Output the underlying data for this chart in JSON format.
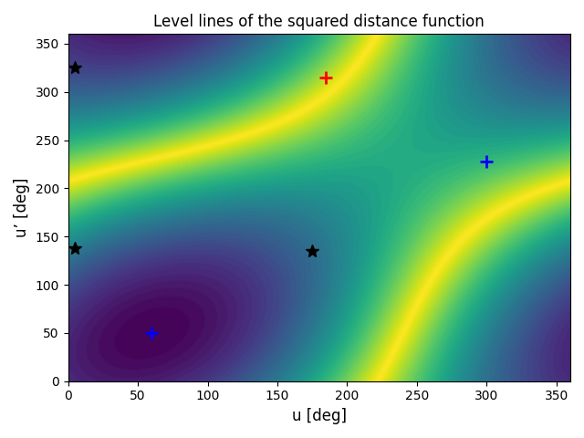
{
  "title": "Level lines of the squared distance function",
  "xlabel": "u [deg]",
  "ylabel": "u’ [deg]",
  "xlim": [
    0,
    360
  ],
  "ylim": [
    0,
    360
  ],
  "xticks": [
    0,
    50,
    100,
    150,
    200,
    250,
    300,
    350
  ],
  "yticks": [
    0,
    50,
    100,
    150,
    200,
    250,
    300,
    350
  ],
  "cmap": "viridis",
  "n_contours": 50,
  "theta_mid_deg": 110.0,
  "u0_deg": 60.0,
  "up0_deg": 50.0,
  "red_plus_x": 185,
  "red_plus_y": 315,
  "blue_plus_1_x": 60,
  "blue_plus_1_y": 50,
  "blue_plus_2_x": 300,
  "blue_plus_2_y": 228,
  "star_1_x": 5,
  "star_1_y": 325,
  "star_2_x": 5,
  "star_2_y": 138,
  "star_3_x": 175,
  "star_3_y": 135,
  "figsize": [
    6.4,
    4.8
  ],
  "dpi": 100,
  "grid_N": 400,
  "marker_size_plus": 10,
  "marker_size_star": 10,
  "marker_linewidth": 2
}
